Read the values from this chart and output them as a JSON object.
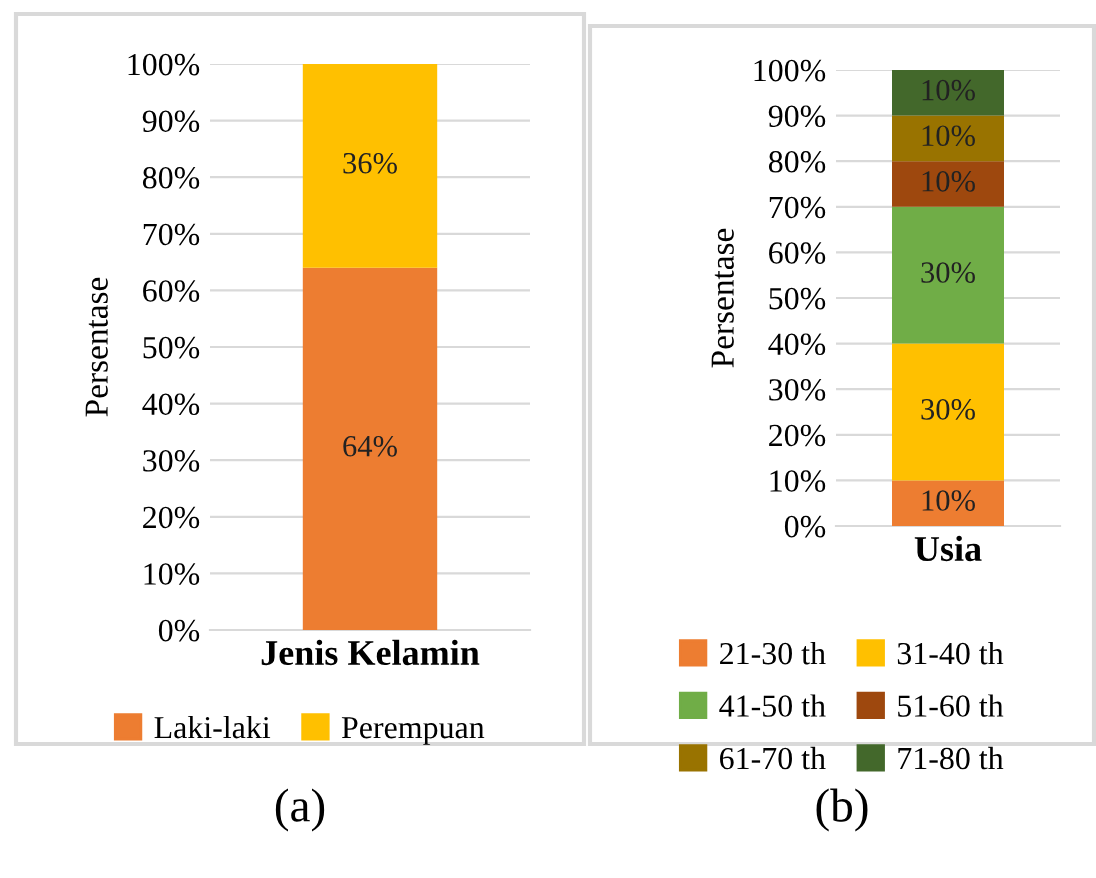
{
  "chart_data": [
    {
      "type": "bar",
      "stacked": true,
      "categories": [
        "Jenis Kelamin"
      ],
      "ylabel": "Persentase",
      "ylim": [
        0,
        100
      ],
      "yticks": [
        {
          "value": 0,
          "label": "0%"
        },
        {
          "value": 10,
          "label": "10%"
        },
        {
          "value": 20,
          "label": "20%"
        },
        {
          "value": 30,
          "label": "30%"
        },
        {
          "value": 40,
          "label": "40%"
        },
        {
          "value": 50,
          "label": "50%"
        },
        {
          "value": 60,
          "label": "60%"
        },
        {
          "value": 70,
          "label": "70%"
        },
        {
          "value": 80,
          "label": "80%"
        },
        {
          "value": 90,
          "label": "90%"
        },
        {
          "value": 100,
          "label": "100%"
        }
      ],
      "grid": "y",
      "legend": "bottom",
      "annotations": [
        "(a)"
      ],
      "series": [
        {
          "name": "Laki-laki",
          "color": "#ed7d31",
          "values": [
            64
          ],
          "value_labels": [
            "64%"
          ]
        },
        {
          "name": "Perempuan",
          "color": "#ffc000",
          "values": [
            36
          ],
          "value_labels": [
            "36%"
          ]
        }
      ]
    },
    {
      "type": "bar",
      "stacked": true,
      "categories": [
        "Usia"
      ],
      "ylabel": "Persentase",
      "ylim": [
        0,
        100
      ],
      "yticks": [
        {
          "value": 0,
          "label": "0%"
        },
        {
          "value": 10,
          "label": "10%"
        },
        {
          "value": 20,
          "label": "20%"
        },
        {
          "value": 30,
          "label": "30%"
        },
        {
          "value": 40,
          "label": "40%"
        },
        {
          "value": 50,
          "label": "50%"
        },
        {
          "value": 60,
          "label": "60%"
        },
        {
          "value": 70,
          "label": "70%"
        },
        {
          "value": 80,
          "label": "80%"
        },
        {
          "value": 90,
          "label": "90%"
        },
        {
          "value": 100,
          "label": "100%"
        }
      ],
      "grid": "y",
      "legend": "bottom",
      "annotations": [
        "(b)"
      ],
      "series": [
        {
          "name": "21-30 th",
          "color": "#ed7d31",
          "values": [
            10
          ],
          "value_labels": [
            "10%"
          ]
        },
        {
          "name": "31-40 th",
          "color": "#ffc000",
          "values": [
            30
          ],
          "value_labels": [
            "30%"
          ]
        },
        {
          "name": "41-50 th",
          "color": "#70ad47",
          "values": [
            30
          ],
          "value_labels": [
            "30%"
          ]
        },
        {
          "name": "51-60 th",
          "color": "#9e480e",
          "values": [
            10
          ],
          "value_labels": [
            "10%"
          ]
        },
        {
          "name": "61-70 th",
          "color": "#997300",
          "values": [
            10
          ],
          "value_labels": [
            "10%"
          ]
        },
        {
          "name": "71-80 th",
          "color": "#43682b",
          "values": [
            10
          ],
          "value_labels": [
            "10%"
          ]
        }
      ]
    }
  ]
}
